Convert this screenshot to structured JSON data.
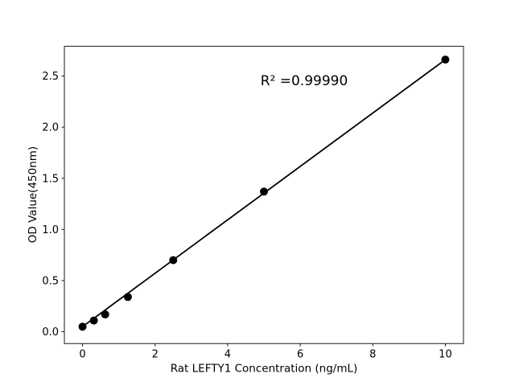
{
  "chart_data": {
    "type": "scatter",
    "title": "",
    "xlabel": "Rat LEFTY1 Concentration (ng/mL)",
    "ylabel": "OD Value(450nm)",
    "x": [
      0,
      0.3125,
      0.625,
      1.25,
      2.5,
      5,
      10
    ],
    "y": [
      0.05,
      0.11,
      0.17,
      0.34,
      0.7,
      1.37,
      2.66
    ],
    "trendline": {
      "x1": 0,
      "y1": 0.05,
      "x2": 10,
      "y2": 2.66
    },
    "r_squared": "R² =0.99990",
    "xticks": [
      0,
      2,
      4,
      6,
      8,
      10
    ],
    "xtick_labels": [
      "0",
      "2",
      "4",
      "6",
      "8",
      "10"
    ],
    "yticks": [
      0.0,
      0.5,
      1.0,
      1.5,
      2.0,
      2.5
    ],
    "ytick_labels": [
      "0.0",
      "0.5",
      "1.0",
      "1.5",
      "2.0",
      "2.5"
    ],
    "xlim": [
      -0.5,
      10.5
    ],
    "ylim": [
      -0.115,
      2.79
    ],
    "grid": false,
    "legend": "none",
    "marker_color": "#000000",
    "line_color": "#000000",
    "axis_color": "#000000",
    "background_color": "#ffffff"
  }
}
